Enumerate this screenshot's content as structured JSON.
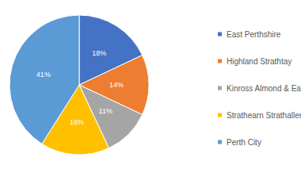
{
  "chart_data": {
    "type": "pie",
    "categories": [
      "East Perthshire",
      "Highland Strathtay",
      "Kinross Almond & Earn",
      "Strathearn Strathallen",
      "Perth City"
    ],
    "values": [
      18,
      14,
      11,
      16,
      41
    ],
    "value_labels": [
      "18%",
      "14%",
      "11%",
      "16%",
      "41%"
    ],
    "colors": [
      "#4472c4",
      "#ed7d31",
      "#a5a5a5",
      "#ffc000",
      "#5b9bd5"
    ],
    "data_labels": true,
    "legend": "right"
  }
}
